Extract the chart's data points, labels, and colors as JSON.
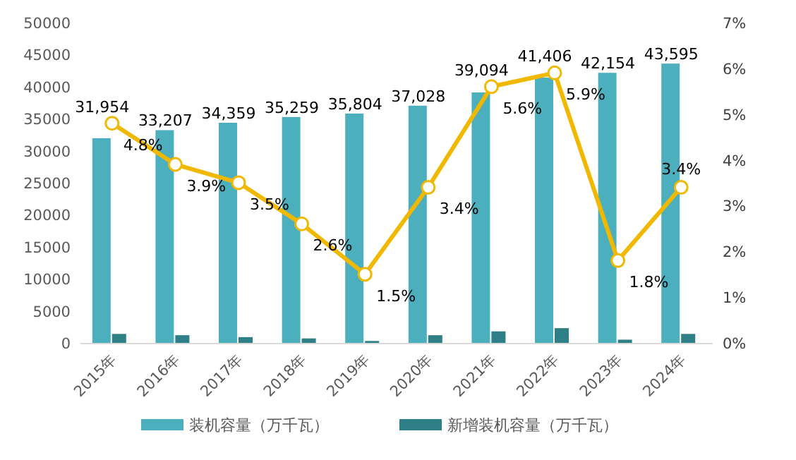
{
  "chart_data": {
    "type": "bar",
    "categories": [
      "2015年",
      "2016年",
      "2017年",
      "2018年",
      "2019年",
      "2020年",
      "2021年",
      "2022年",
      "2023年",
      "2024年"
    ],
    "series": [
      {
        "name": "装机容量（万千瓦）",
        "color": "#4bafbd",
        "values": [
          31954,
          33207,
          34359,
          35259,
          35804,
          37028,
          39094,
          41406,
          42154,
          43595
        ],
        "value_labels": [
          "31,954",
          "33,207",
          "34,359",
          "35,259",
          "35,804",
          "37,028",
          "39,094",
          "41,406",
          "42,154",
          "43,595"
        ]
      },
      {
        "name": "新增装机容量（万千瓦）",
        "color": "#2e7f86",
        "values": [
          1400,
          1200,
          900,
          700,
          300,
          1200,
          1800,
          2300,
          500,
          1400
        ]
      },
      {
        "type": "line",
        "axis": "y2",
        "color": "#f0b800",
        "marker": "circle",
        "values": [
          4.8,
          3.9,
          3.5,
          2.6,
          1.5,
          3.4,
          5.6,
          5.9,
          1.8,
          3.4
        ],
        "value_labels": [
          "4.8%",
          "3.9%",
          "3.5%",
          "2.6%",
          "1.5%",
          "3.4%",
          "5.6%",
          "5.9%",
          "1.8%",
          "3.4%"
        ]
      }
    ],
    "ylim": [
      0,
      50000
    ],
    "yticks": [
      0,
      5000,
      10000,
      15000,
      20000,
      25000,
      30000,
      35000,
      40000,
      45000,
      50000
    ],
    "y2lim": [
      0,
      7
    ],
    "y2ticks": [
      {
        "value": 0,
        "label": "0%"
      },
      {
        "value": 1,
        "label": "1%"
      },
      {
        "value": 2,
        "label": "2%"
      },
      {
        "value": 3,
        "label": "3%"
      },
      {
        "value": 4,
        "label": "4%"
      },
      {
        "value": 5,
        "label": "5%"
      },
      {
        "value": 6,
        "label": "6%"
      },
      {
        "value": 7,
        "label": "7%"
      }
    ],
    "grid": false,
    "legend": "bottom"
  }
}
